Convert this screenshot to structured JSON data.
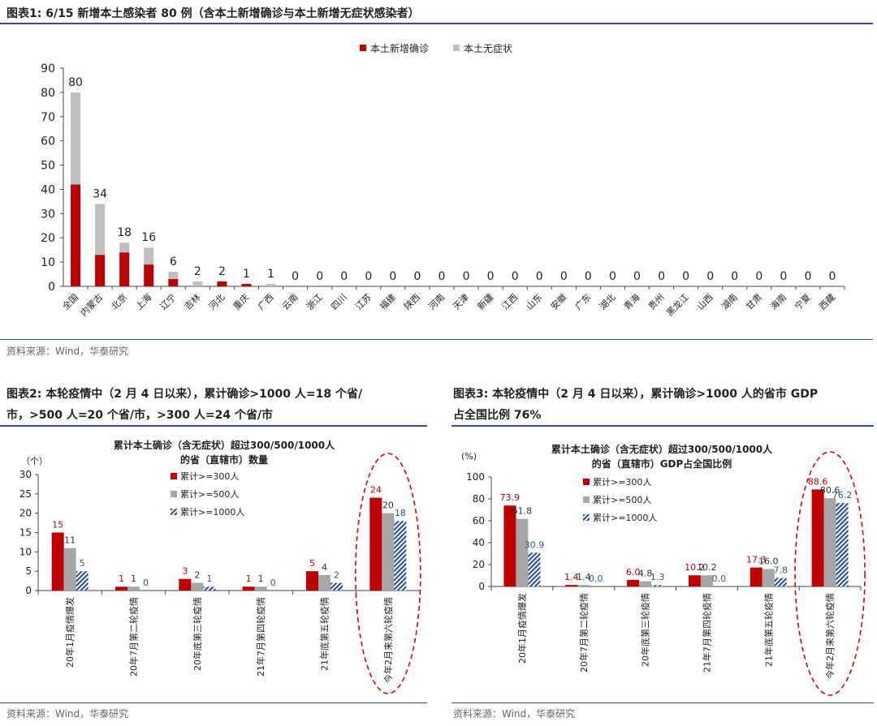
{
  "fig1": {
    "title": "图表1:   6/15 新增本土感染者 80 例（含本土新增确诊与本土新增无症状感染者）",
    "source": "资料来源：Wind，华泰研究"
  },
  "fig2": {
    "title_line1": "图表2:   本轮疫情中（2 月 4 日以来），累计确诊>1000 人=18 个省/",
    "title_line2": "市，>500 人=20 个省/市，>300 人=24 个省/市",
    "source": "资料来源：Wind，华泰研究"
  },
  "fig3": {
    "title_line1": "图表3:   本轮疫情中（2 月 4 日以来），累计确诊>1000 人的省市 GDP",
    "title_line2": "占全国比例 76%",
    "source": "资料来源：Wind，华泰研究"
  },
  "colors": {
    "red": "#c00000",
    "gray": "#bfbfbf",
    "darkgray": "#a6a6a6",
    "blue": "#2f5597",
    "rule": "#2e4e8e"
  },
  "chart_data": [
    {
      "type": "bar",
      "stacked": true,
      "title": "",
      "xlabel": "",
      "ylabel": "",
      "ylim": [
        0,
        90
      ],
      "yticks": [
        0,
        10,
        20,
        30,
        40,
        50,
        60,
        70,
        80,
        90
      ],
      "legend_position": "top-right",
      "categories": [
        "全国",
        "内蒙古",
        "北京",
        "上海",
        "辽宁",
        "吉林",
        "河北",
        "重庆",
        "广西",
        "云南",
        "浙江",
        "四川",
        "江苏",
        "福建",
        "陕西",
        "河南",
        "天津",
        "新疆",
        "江西",
        "山东",
        "安徽",
        "广东",
        "湖北",
        "青海",
        "贵州",
        "黑龙江",
        "山西",
        "湖南",
        "甘肃",
        "海南",
        "宁夏",
        "西藏"
      ],
      "series": [
        {
          "name": "本土新增确诊",
          "values": [
            42,
            13,
            14,
            9,
            3,
            0,
            2,
            1,
            0,
            0,
            0,
            0,
            0,
            0,
            0,
            0,
            0,
            0,
            0,
            0,
            0,
            0,
            0,
            0,
            0,
            0,
            0,
            0,
            0,
            0,
            0,
            0
          ]
        },
        {
          "name": "本土无症状",
          "values": [
            38,
            21,
            4,
            7,
            3,
            2,
            0,
            0,
            1,
            0,
            0,
            0,
            0,
            0,
            0,
            0,
            0,
            0,
            0,
            0,
            0,
            0,
            0,
            0,
            0,
            0,
            0,
            0,
            0,
            0,
            0,
            0
          ]
        }
      ],
      "totals": [
        "80",
        "34",
        "18",
        "16",
        "6",
        "2",
        "2",
        "1",
        "1",
        "0",
        "0",
        "0",
        "0",
        "0",
        "0",
        "0",
        "0",
        "0",
        "0",
        "0",
        "0",
        "0",
        "0",
        "0",
        "0",
        "0",
        "0",
        "0",
        "0",
        "0",
        "0",
        "0"
      ]
    },
    {
      "type": "bar",
      "title_line1": "累计本土确诊（含无症状）超过300/500/1000人",
      "title_line2": "的省（直辖市）数量",
      "ylabel": "（个）",
      "ylim": [
        0,
        30
      ],
      "yticks": [
        0,
        5,
        10,
        15,
        20,
        25,
        30
      ],
      "legend_position": "top-left",
      "categories": [
        "20年1月疫情爆发",
        "20年7月第二轮疫情",
        "20年底第三轮疫情",
        "21年7月第四轮疫情",
        "21年底第五轮疫情",
        "今年2月来第六轮疫情"
      ],
      "series": [
        {
          "name": "累计>=300人",
          "values": [
            15,
            1,
            3,
            1,
            5,
            24
          ],
          "labels": [
            "15",
            "1",
            "3",
            "1",
            "5",
            "24"
          ]
        },
        {
          "name": "累计>=500人",
          "values": [
            11,
            1,
            2,
            1,
            4,
            20
          ],
          "labels": [
            "11",
            "1",
            "2",
            "1",
            "4",
            "20"
          ]
        },
        {
          "name": "累计>=1000人",
          "values": [
            5,
            0,
            1,
            0,
            2,
            18
          ],
          "labels": [
            "5",
            "0",
            "1",
            "0",
            "2",
            "18"
          ]
        }
      ],
      "highlight_category": 5
    },
    {
      "type": "bar",
      "title_line1": "累计本土确诊（含无症状）超过300/500/1000人",
      "title_line2": "的省（直辖市）GDP占全国比例",
      "ylabel": "(%)",
      "ylim": [
        0,
        100
      ],
      "yticks": [
        0,
        20,
        40,
        60,
        80,
        100
      ],
      "legend_position": "top-center",
      "categories": [
        "20年1月疫情爆发",
        "20年7月第二轮疫情",
        "20年底第三轮疫情",
        "21年7月第四轮疫情",
        "21年底第五轮疫情",
        "今年2月来第六轮疫情"
      ],
      "series": [
        {
          "name": "累计>=300人",
          "values": [
            73.9,
            1.4,
            6.0,
            10.2,
            17.3,
            88.6
          ],
          "labels": [
            "73.9",
            "1.4",
            "6.0",
            "10.2",
            "17.3",
            "88.6"
          ]
        },
        {
          "name": "累计>=500人",
          "values": [
            61.8,
            1.4,
            4.8,
            10.2,
            16.0,
            80.6
          ],
          "labels": [
            "61.8",
            "1.4",
            "4.8",
            "10.2",
            "16.0",
            "80.6"
          ]
        },
        {
          "name": "累计>=1000人",
          "values": [
            30.9,
            0.0,
            1.3,
            0.0,
            7.8,
            76.2
          ],
          "labels": [
            "30.9",
            "0.0",
            "1.3",
            "0.0",
            "7.8",
            "76.2"
          ]
        }
      ],
      "highlight_category": 5
    }
  ]
}
